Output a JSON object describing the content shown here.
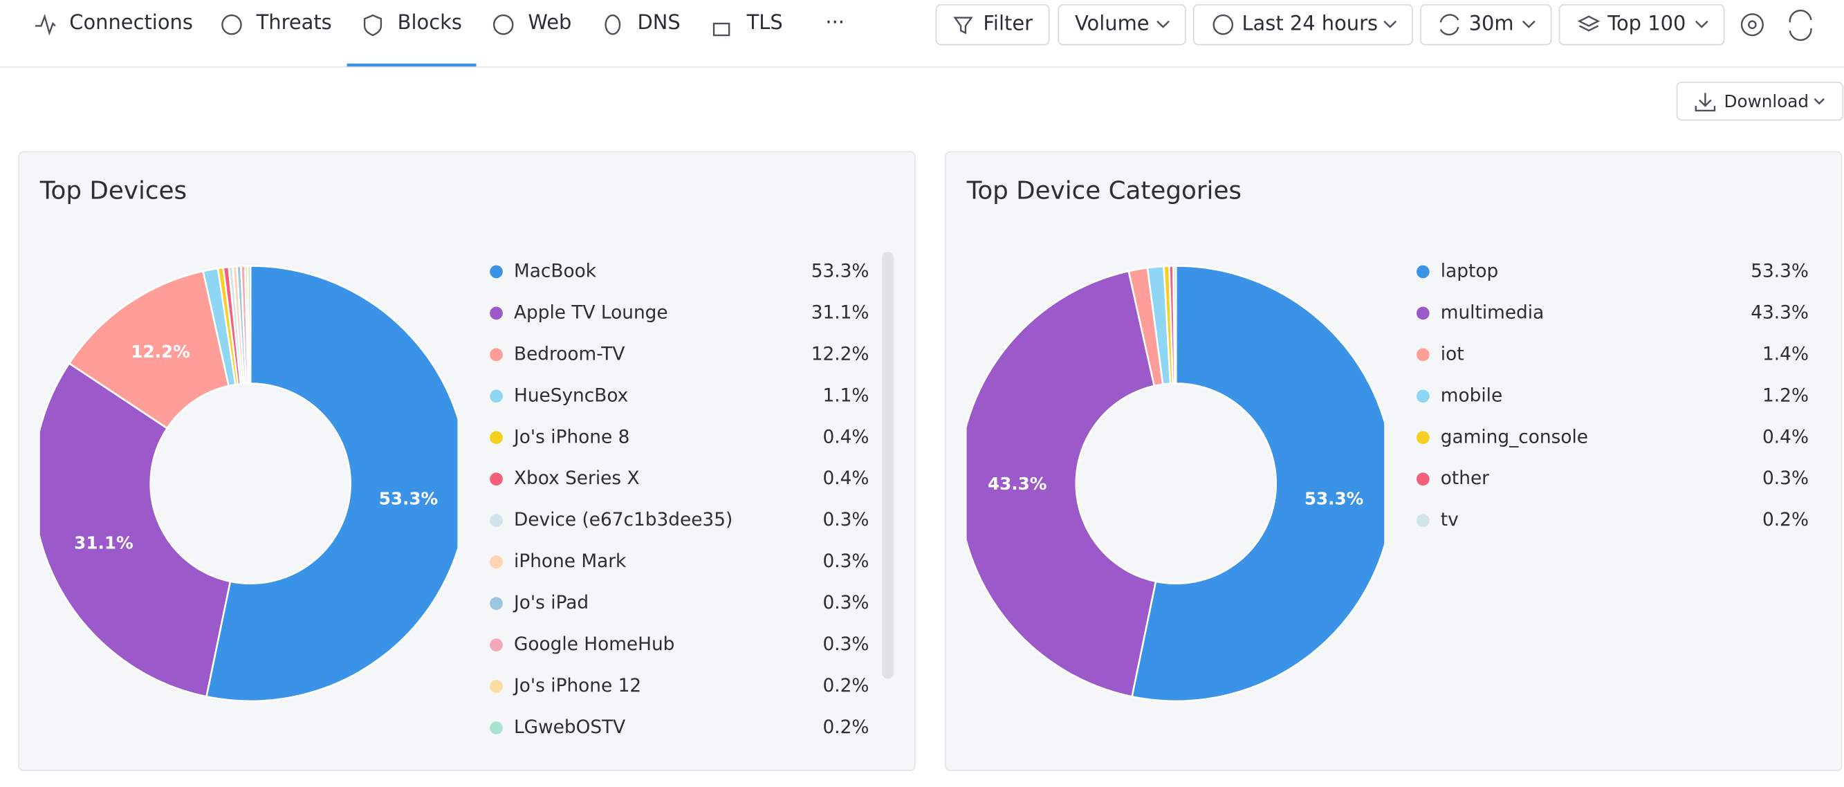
{
  "nav": {
    "tabs": [
      "Connections",
      "Threats",
      "Blocks",
      "Web",
      "DNS",
      "TLS"
    ],
    "more": "···"
  },
  "toolbar": {
    "buttons": [
      "Filter",
      "Volume",
      "Last 24 hours",
      "30m",
      "Top 100"
    ]
  },
  "download": "Download",
  "chart_data": [
    {
      "type": "pie",
      "title": "Top Devices",
      "categories": [
        "MacBook",
        "Apple TV Lounge",
        "Bedroom-TV",
        "HueSyncBox",
        "Jo's iPhone 8",
        "Xbox Series X",
        "Device (e67c1b3dee35)",
        "iPhone Mark",
        "Jo's iPad",
        "Google HomeHub",
        "Jo's iPhone 12",
        "LGwebOSTV"
      ],
      "values": [
        53.3,
        31.1,
        12.2,
        1.1,
        0.4,
        0.4,
        0.3,
        0.3,
        0.3,
        0.3,
        0.2,
        0.2
      ],
      "value_labels": [
        "53.3%",
        "31.1%",
        "12.2%",
        "1.1%",
        "0.4%",
        "0.4%",
        "0.3%",
        "0.3%",
        "0.3%",
        "0.3%",
        "0.2%",
        "0.2%"
      ],
      "colors": [
        "#3b93e8",
        "#9b59c9",
        "#ff9e99",
        "#8fd6f5",
        "#f5d020",
        "#f2607a",
        "#d0e4ea",
        "#fdd3b0",
        "#9cc6e0",
        "#f2a8b8",
        "#fcdca0",
        "#a8e3cf"
      ]
    },
    {
      "type": "pie",
      "title": "Top Device Categories",
      "categories": [
        "laptop",
        "multimedia",
        "iot",
        "mobile",
        "gaming_console",
        "other",
        "tv"
      ],
      "values": [
        53.3,
        43.3,
        1.4,
        1.2,
        0.4,
        0.3,
        0.2
      ],
      "value_labels": [
        "53.3%",
        "43.3%",
        "1.4%",
        "1.2%",
        "0.4%",
        "0.3%",
        "0.2%"
      ],
      "colors": [
        "#3b93e8",
        "#9b59c9",
        "#ff9e99",
        "#8fd6f5",
        "#f5d020",
        "#f2607a",
        "#d0e4ea"
      ]
    }
  ]
}
